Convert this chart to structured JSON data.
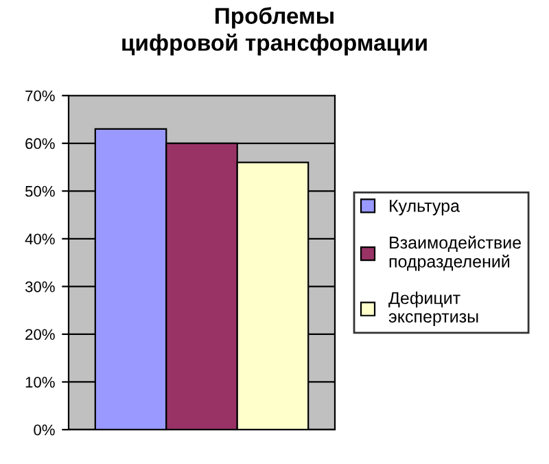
{
  "chart_data": {
    "type": "bar",
    "title": "Проблемы\nцифровой трансформации",
    "categories": [
      null
    ],
    "series": [
      {
        "name": "Культура",
        "color": "#9999ff",
        "values": [
          63
        ]
      },
      {
        "name": "Взаимодействие\nподразделений",
        "color": "#993366",
        "values": [
          60
        ]
      },
      {
        "name": "Дефицит\nэкспертизы",
        "color": "#ffffcc",
        "values": [
          56
        ]
      }
    ],
    "ylim": [
      0,
      70
    ],
    "yticks": [
      {
        "value": 0,
        "label": "0%"
      },
      {
        "value": 10,
        "label": "10%"
      },
      {
        "value": 20,
        "label": "20%"
      },
      {
        "value": 30,
        "label": "30%"
      },
      {
        "value": 40,
        "label": "40%"
      },
      {
        "value": 50,
        "label": "50%"
      },
      {
        "value": 60,
        "label": "60%"
      },
      {
        "value": 70,
        "label": "70%"
      }
    ],
    "grid": "y",
    "legend": "right"
  }
}
